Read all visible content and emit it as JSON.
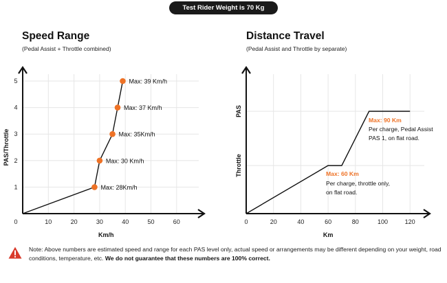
{
  "banner": "Test Rider Weight is 70 Kg",
  "note": {
    "text": "Note: Above numbers are estimated speed and range for each PAS level only, actual speed or arrangements may be different depending on your weight, road conditions, temperature, etc.",
    "bold": "We do not guarantee that these numbers are 100% correct."
  },
  "colors": {
    "marker": "#ee7226",
    "highlight": "#ee7226",
    "warning": "#d93a2b",
    "line": "#111111"
  },
  "chart_data": [
    {
      "type": "line",
      "title": "Speed Range",
      "subtitle": "(Pedal Assist + Throttle combined)",
      "xlabel": "Km/h",
      "ylabel": "PAS/Throttle",
      "xlim": [
        0,
        60
      ],
      "ylim": [
        0,
        5
      ],
      "x_ticks": [
        "0",
        "10",
        "20",
        "30",
        "40",
        "50",
        "60"
      ],
      "y_ticks": [
        "1",
        "2",
        "3",
        "4",
        "5"
      ],
      "grid": true,
      "series": [
        {
          "x": [
            0,
            28,
            30,
            35,
            37,
            39
          ],
          "y": [
            0,
            1,
            2,
            3,
            4,
            5
          ],
          "markers": [
            {
              "x": 28,
              "y": 1,
              "label": "Max: 28Km/h"
            },
            {
              "x": 30,
              "y": 2,
              "label": "Max: 30 Km/h"
            },
            {
              "x": 35,
              "y": 3,
              "label": "Max: 35Km/h"
            },
            {
              "x": 37,
              "y": 4,
              "label": "Max: 37 Km/h"
            },
            {
              "x": 39,
              "y": 5,
              "label": "Max: 39 Km/h"
            }
          ]
        }
      ]
    },
    {
      "type": "line",
      "title": "Distance Travel",
      "subtitle": "(Pedal Assist and Throttle by separate)",
      "xlabel": "Km",
      "xlim": [
        0,
        120
      ],
      "x_ticks": [
        "0",
        "20",
        "40",
        "60",
        "80",
        "100",
        "120"
      ],
      "y_categories": [
        "Throttle",
        "PAS"
      ],
      "grid": true,
      "series": [
        {
          "x": [
            0,
            60,
            70,
            90,
            120
          ],
          "y": [
            "Start",
            "Throttle",
            "Throttle",
            "PAS",
            "PAS"
          ]
        }
      ],
      "annotations": [
        {
          "title": "Max: 90 Km",
          "lines": [
            "Per charge, Pedal Assist",
            "PAS 1, on flat road."
          ]
        },
        {
          "title": "Max: 60 Km",
          "lines": [
            "Per charge, throttle only,",
            "on flat road."
          ]
        }
      ]
    }
  ]
}
